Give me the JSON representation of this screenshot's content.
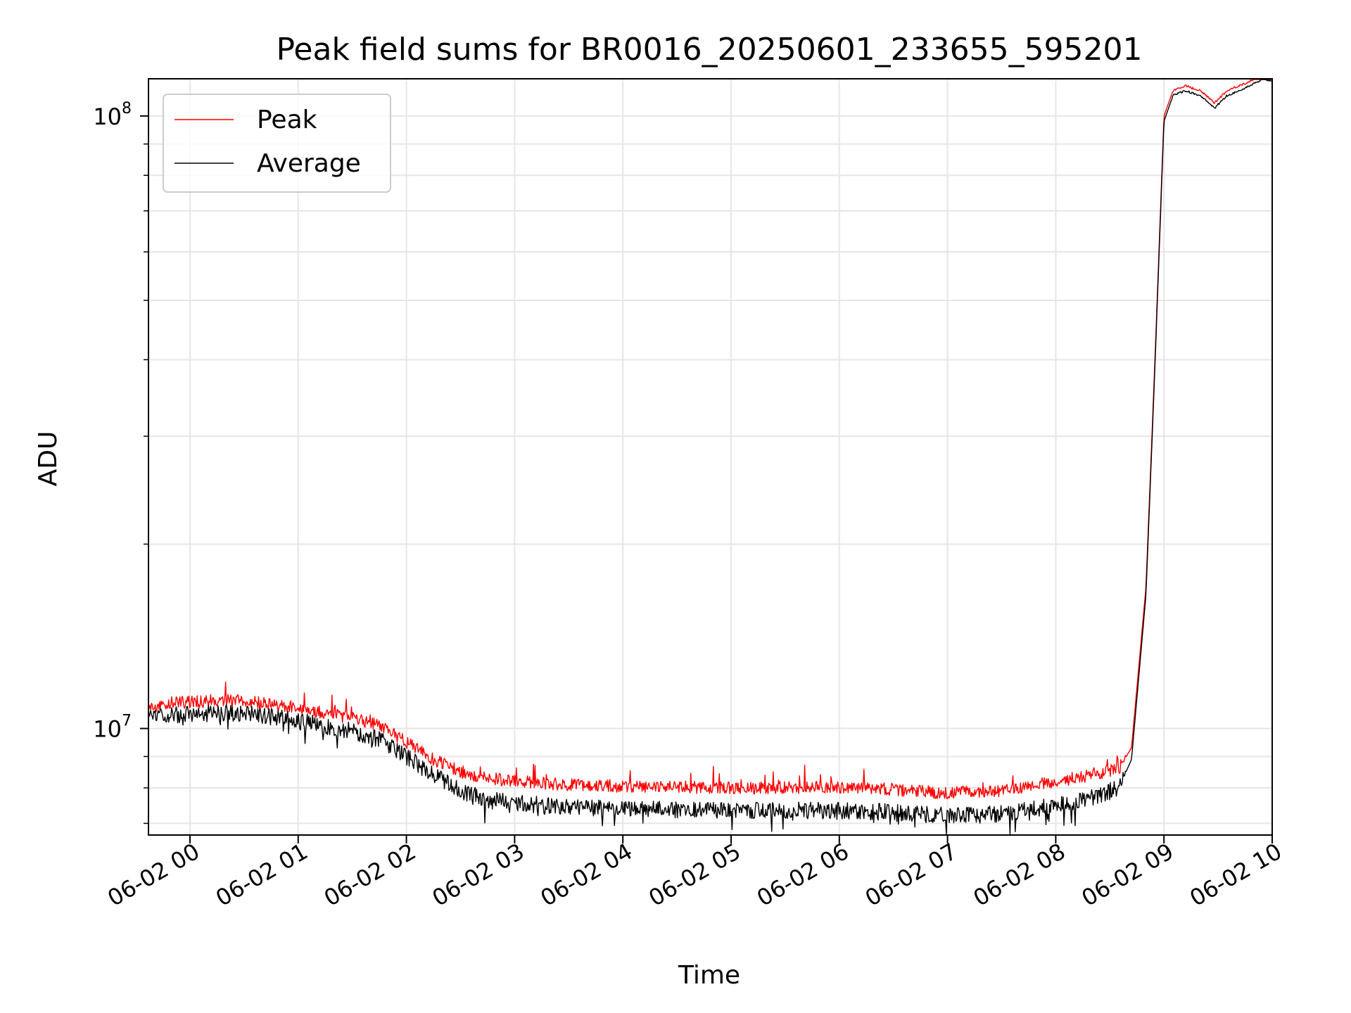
{
  "chart_data": {
    "type": "line",
    "title": "Peak field sums for BR0016_20250601_233655_595201",
    "xlabel": "Time",
    "ylabel": "ADU",
    "x_scale": "time",
    "y_scale": "log",
    "xlim": [
      "2025-06-01T23:37:00",
      "2025-06-02T10:00:00"
    ],
    "ylim": [
      6700000,
      115000000
    ],
    "x_ticks": [
      {
        "value": "2025-06-02T00:00",
        "label": "06-02 00"
      },
      {
        "value": "2025-06-02T01:00",
        "label": "06-02 01"
      },
      {
        "value": "2025-06-02T02:00",
        "label": "06-02 02"
      },
      {
        "value": "2025-06-02T03:00",
        "label": "06-02 03"
      },
      {
        "value": "2025-06-02T04:00",
        "label": "06-02 04"
      },
      {
        "value": "2025-06-02T05:00",
        "label": "06-02 05"
      },
      {
        "value": "2025-06-02T06:00",
        "label": "06-02 06"
      },
      {
        "value": "2025-06-02T07:00",
        "label": "06-02 07"
      },
      {
        "value": "2025-06-02T08:00",
        "label": "06-02 08"
      },
      {
        "value": "2025-06-02T09:00",
        "label": "06-02 09"
      },
      {
        "value": "2025-06-02T10:00",
        "label": "06-02 10"
      }
    ],
    "y_major_ticks": [
      {
        "value": 10000000,
        "base": "10",
        "exp": "7"
      },
      {
        "value": 100000000,
        "base": "10",
        "exp": "8"
      }
    ],
    "y_minor_ticks": [
      7000000,
      8000000,
      9000000,
      20000000,
      30000000,
      40000000,
      50000000,
      60000000,
      70000000,
      80000000,
      90000000
    ],
    "grid": true,
    "legend_position": "top-left",
    "series": [
      {
        "name": "Peak",
        "color": "#ff0000",
        "x": [
          "2025-06-01T23:37",
          "2025-06-01T23:45",
          "2025-06-02T00:00",
          "2025-06-02T00:15",
          "2025-06-02T00:30",
          "2025-06-02T00:45",
          "2025-06-02T01:00",
          "2025-06-02T01:15",
          "2025-06-02T01:30",
          "2025-06-02T01:45",
          "2025-06-02T02:00",
          "2025-06-02T02:15",
          "2025-06-02T02:30",
          "2025-06-02T02:45",
          "2025-06-02T03:00",
          "2025-06-02T03:30",
          "2025-06-02T04:00",
          "2025-06-02T05:00",
          "2025-06-02T06:00",
          "2025-06-02T06:30",
          "2025-06-02T07:00",
          "2025-06-02T07:30",
          "2025-06-02T08:00",
          "2025-06-02T08:20",
          "2025-06-02T08:35",
          "2025-06-02T08:42",
          "2025-06-02T08:50",
          "2025-06-02T08:55",
          "2025-06-02T09:00",
          "2025-06-02T09:05",
          "2025-06-02T09:12",
          "2025-06-02T09:20",
          "2025-06-02T09:28",
          "2025-06-02T09:35",
          "2025-06-02T09:45",
          "2025-06-02T09:55",
          "2025-06-02T10:00"
        ],
        "y": [
          10800000,
          11000000,
          11050000,
          11100000,
          11100000,
          10950000,
          10800000,
          10600000,
          10400000,
          10100000,
          9500000,
          8900000,
          8500000,
          8300000,
          8200000,
          8100000,
          8050000,
          8000000,
          8000000,
          7950000,
          7850000,
          7900000,
          8200000,
          8400000,
          8600000,
          9300000,
          17000000,
          40000000,
          100000000,
          110000000,
          112000000,
          110000000,
          105000000,
          110000000,
          113000000,
          117000000,
          116000000
        ]
      },
      {
        "name": "Average",
        "color": "#000000",
        "x": [
          "2025-06-01T23:37",
          "2025-06-01T23:45",
          "2025-06-02T00:00",
          "2025-06-02T00:15",
          "2025-06-02T00:30",
          "2025-06-02T00:45",
          "2025-06-02T01:00",
          "2025-06-02T01:15",
          "2025-06-02T01:30",
          "2025-06-02T01:45",
          "2025-06-02T02:00",
          "2025-06-02T02:15",
          "2025-06-02T02:30",
          "2025-06-02T02:45",
          "2025-06-02T03:00",
          "2025-06-02T03:30",
          "2025-06-02T04:00",
          "2025-06-02T05:00",
          "2025-06-02T06:00",
          "2025-06-02T06:30",
          "2025-06-02T07:00",
          "2025-06-02T07:30",
          "2025-06-02T08:00",
          "2025-06-02T08:20",
          "2025-06-02T08:35",
          "2025-06-02T08:42",
          "2025-06-02T08:50",
          "2025-06-02T08:55",
          "2025-06-02T09:00",
          "2025-06-02T09:05",
          "2025-06-02T09:12",
          "2025-06-02T09:20",
          "2025-06-02T09:28",
          "2025-06-02T09:35",
          "2025-06-02T09:45",
          "2025-06-02T09:55",
          "2025-06-02T10:00"
        ],
        "y": [
          10400000,
          10500000,
          10550000,
          10600000,
          10600000,
          10450000,
          10300000,
          10100000,
          9900000,
          9600000,
          9000000,
          8400000,
          7900000,
          7650000,
          7550000,
          7450000,
          7400000,
          7350000,
          7350000,
          7300000,
          7200000,
          7250000,
          7500000,
          7700000,
          8000000,
          8900000,
          16500000,
          39000000,
          98000000,
          108000000,
          110000000,
          108000000,
          103000000,
          108000000,
          111000000,
          115000000,
          114000000
        ]
      }
    ]
  }
}
